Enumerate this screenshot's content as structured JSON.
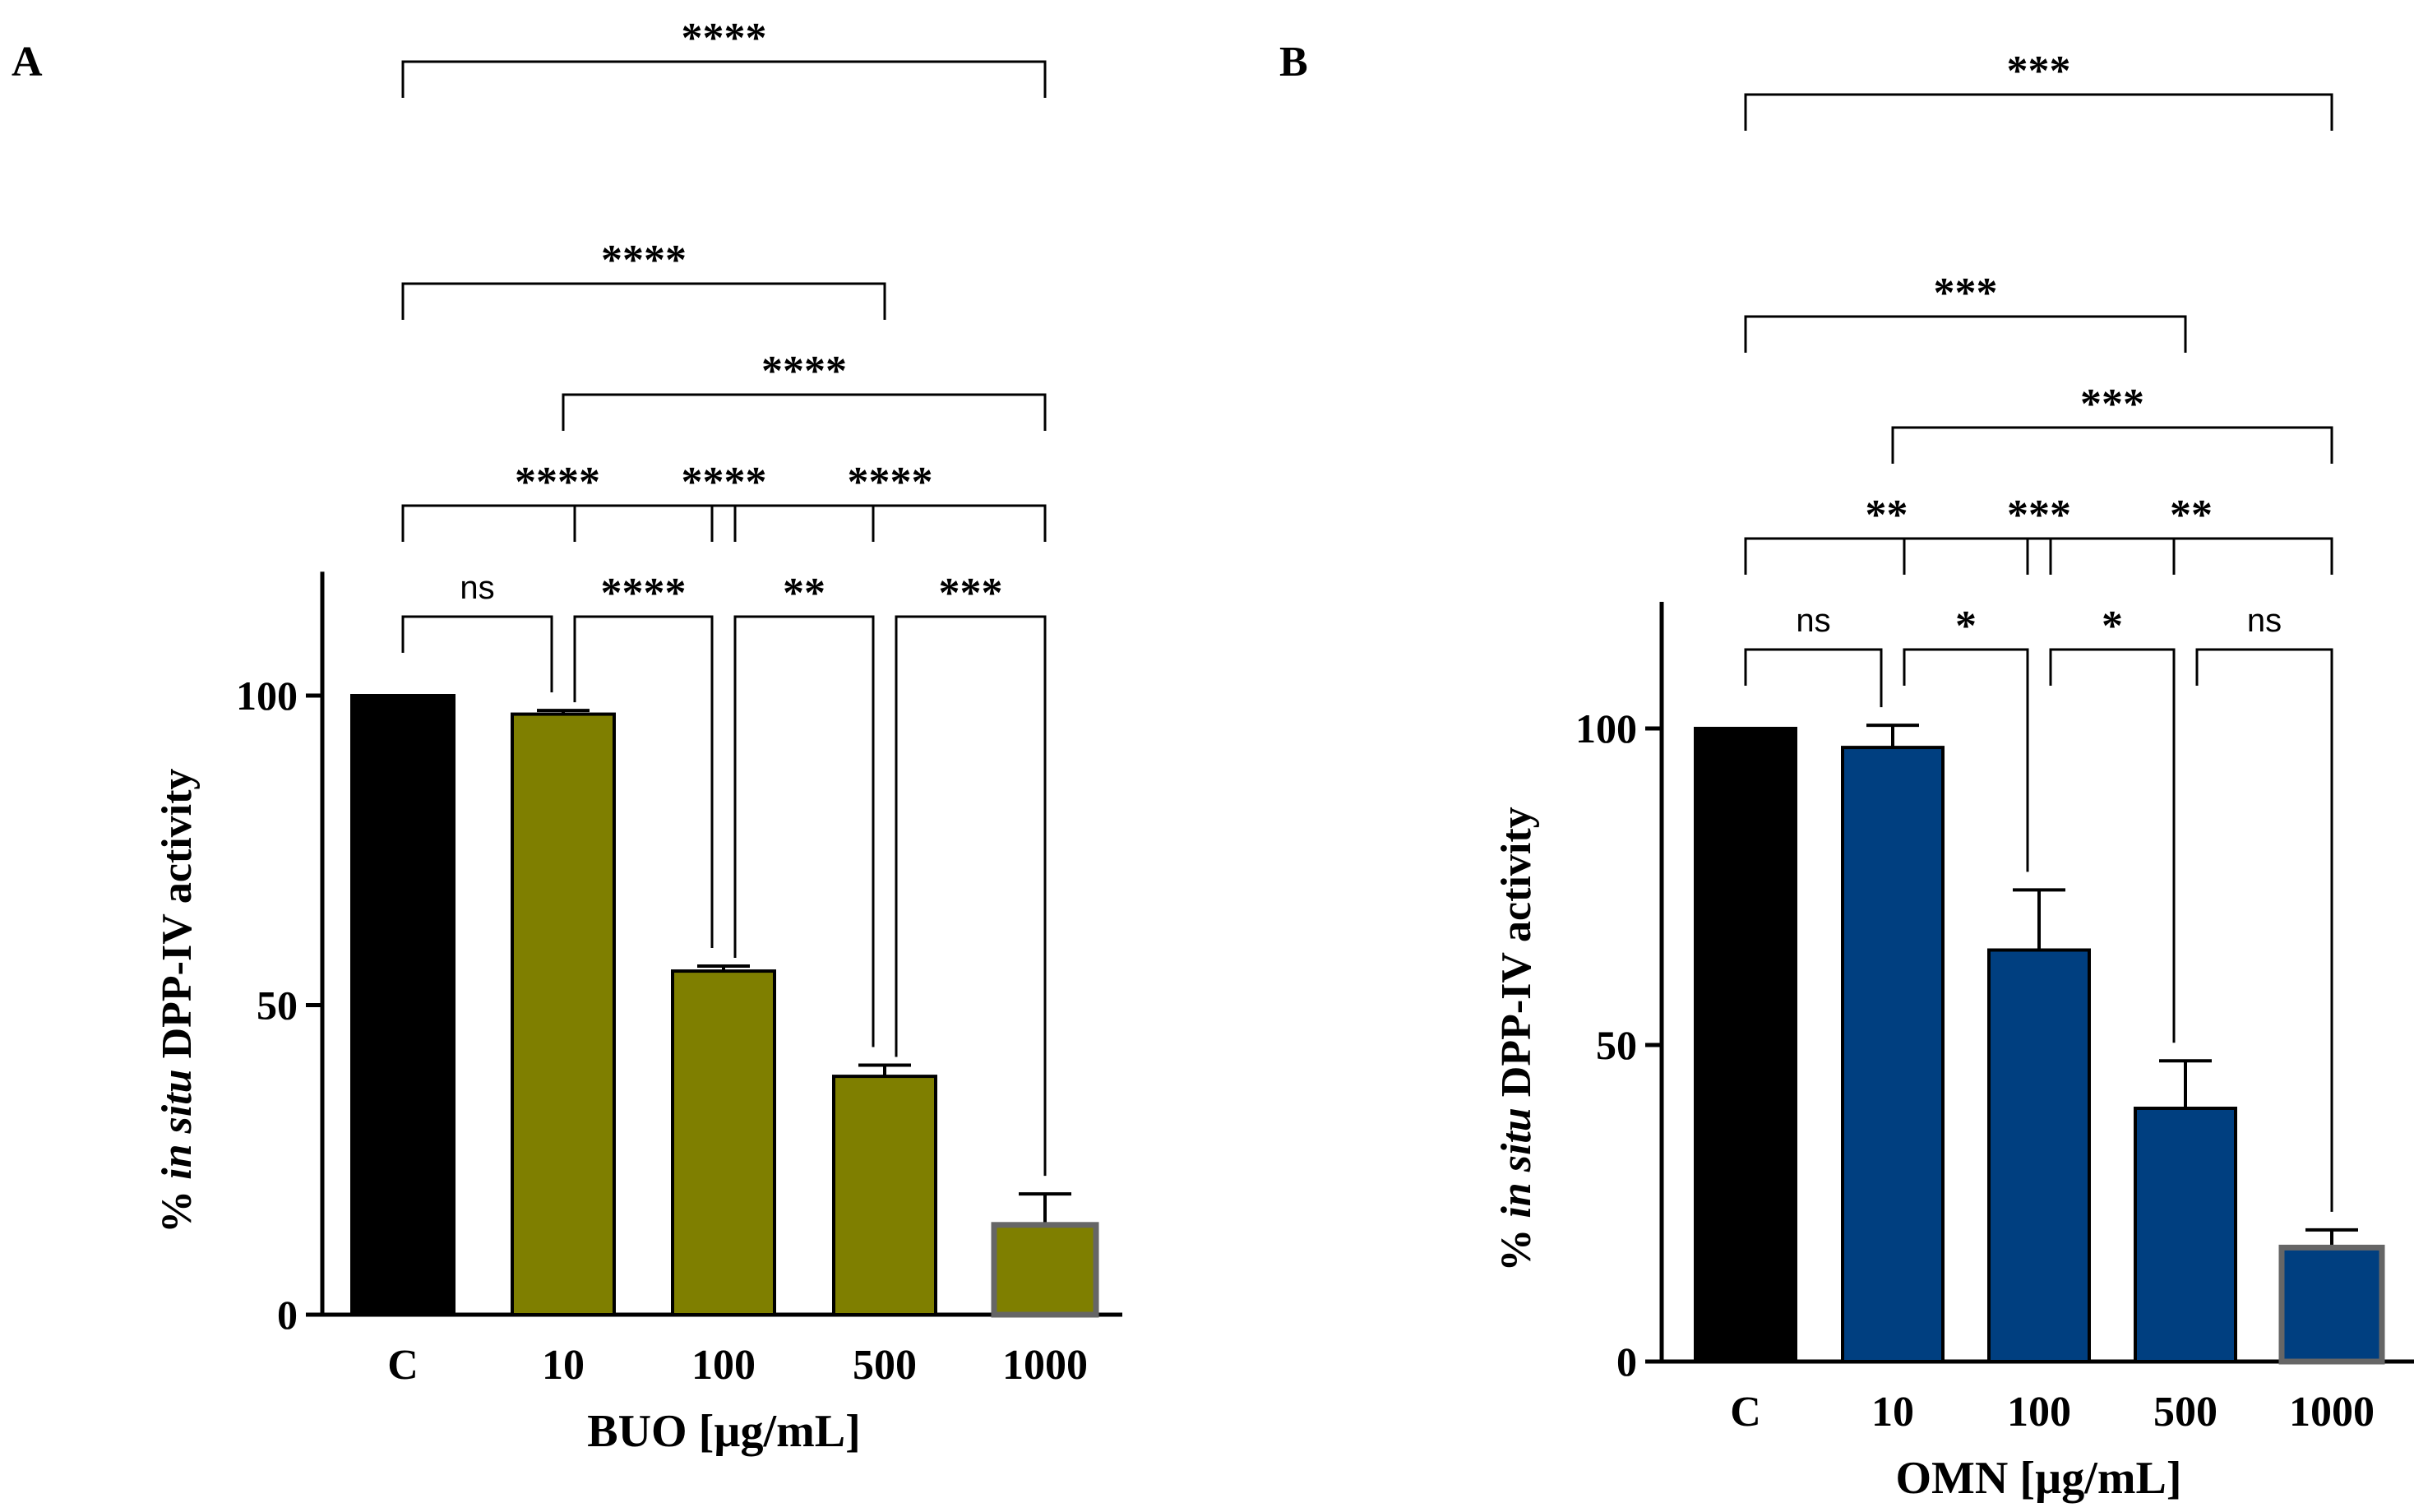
{
  "chart_data": [
    {
      "panel": "A",
      "type": "bar",
      "categories": [
        "C",
        "10",
        "100",
        "500",
        "1000"
      ],
      "values": [
        100,
        97,
        55.5,
        38.5,
        14.5
      ],
      "errors": [
        0,
        0.6,
        0.8,
        1.8,
        5
      ],
      "colors": [
        "#000000",
        "#7f7f00",
        "#7f7f00",
        "#7f7f00",
        "#7f7f00"
      ],
      "ylim": [
        0,
        120
      ],
      "yticks": [
        0,
        50,
        100
      ],
      "xlabel": "BUO [µg/mL]",
      "ylabel": {
        "prefix": "% ",
        "italic": "in situ",
        "suffix": " DPP-IV activity"
      },
      "comparisons": [
        {
          "a": 0,
          "b": 1,
          "label": "ns"
        },
        {
          "a": 1,
          "b": 2,
          "label": "****"
        },
        {
          "a": 2,
          "b": 3,
          "label": "**"
        },
        {
          "a": 3,
          "b": 4,
          "label": "***"
        },
        {
          "a": 0,
          "b": 2,
          "label": "****"
        },
        {
          "a": 2,
          "b": 4,
          "label": "****"
        },
        {
          "a": 1,
          "b": 3,
          "label": "****"
        },
        {
          "a": 0,
          "b": 3,
          "label": "****"
        },
        {
          "a": 1,
          "b": 4,
          "label": "****"
        },
        {
          "a": 0,
          "b": 4,
          "label": "****"
        }
      ]
    },
    {
      "panel": "B",
      "type": "bar",
      "categories": [
        "C",
        "10",
        "100",
        "500",
        "1000"
      ],
      "values": [
        100,
        97,
        65,
        40,
        18
      ],
      "errors": [
        0,
        3.5,
        9.5,
        7.5,
        2.8
      ],
      "colors": [
        "#000000",
        "#003f80",
        "#003f80",
        "#003f80",
        "#003f80"
      ],
      "ylim": [
        0,
        120
      ],
      "yticks": [
        0,
        50,
        100
      ],
      "xlabel": "OMN [µg/mL]",
      "ylabel": {
        "prefix": "% ",
        "italic": "in situ",
        "suffix": " DPP-IV activity"
      },
      "comparisons": [
        {
          "a": 0,
          "b": 1,
          "label": "ns"
        },
        {
          "a": 1,
          "b": 2,
          "label": "*"
        },
        {
          "a": 2,
          "b": 3,
          "label": "*"
        },
        {
          "a": 3,
          "b": 4,
          "label": "ns"
        },
        {
          "a": 0,
          "b": 2,
          "label": "**"
        },
        {
          "a": 2,
          "b": 4,
          "label": "**"
        },
        {
          "a": 1,
          "b": 3,
          "label": "***"
        },
        {
          "a": 0,
          "b": 3,
          "label": "***"
        },
        {
          "a": 1,
          "b": 4,
          "label": "***"
        },
        {
          "a": 0,
          "b": 4,
          "label": "***"
        }
      ]
    }
  ]
}
